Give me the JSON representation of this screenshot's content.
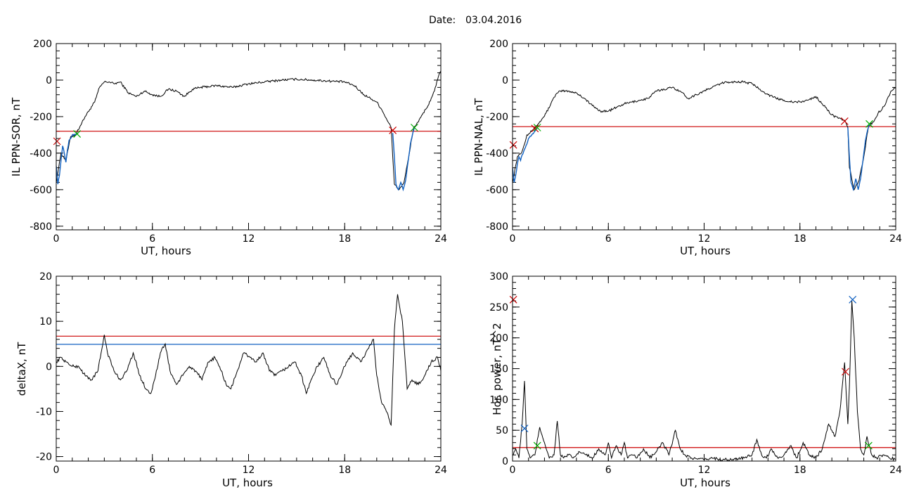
{
  "header": {
    "date_label": "Date:",
    "date_value": "03.04.2016"
  },
  "colors": {
    "trace": "#000000",
    "threshold": "#cc0000",
    "secondary": "#1060c0",
    "marker_start": "#cc0000",
    "marker_end": "#00aa00",
    "marker_peak": "#1060c0"
  },
  "chart_data": [
    {
      "type": "line",
      "xlabel": "UT, hours",
      "ylabel": "IL PPN-SOR, nT",
      "xlim": [
        0,
        24
      ],
      "ylim": [
        -820,
        200
      ],
      "xticks": [
        0,
        6,
        12,
        18,
        24
      ],
      "yticks": [
        -800,
        -600,
        -400,
        -200,
        0,
        200
      ],
      "series": [
        {
          "color": "#000000",
          "x": [
            0,
            0.3,
            0.6,
            0.9,
            1.2,
            1.5,
            1.8,
            2.1,
            2.4,
            2.7,
            3.0,
            3.3,
            3.6,
            4.0,
            4.5,
            5.0,
            5.5,
            6.0,
            6.5,
            7.0,
            7.5,
            8.0,
            8.5,
            9.0,
            10.0,
            11.0,
            12.0,
            13.0,
            14.0,
            15.0,
            16.0,
            17.0,
            18.0,
            18.6,
            19.2,
            19.6,
            20.0,
            20.3,
            20.6,
            20.9,
            21.0,
            21.1,
            21.4,
            21.7,
            22.0,
            22.3,
            22.6,
            22.9,
            23.2,
            23.5,
            23.7,
            23.85,
            24.0
          ],
          "y": [
            -560,
            -400,
            -440,
            -310,
            -300,
            -250,
            -200,
            -160,
            -120,
            -40,
            -10,
            -10,
            -20,
            -10,
            -70,
            -90,
            -60,
            -80,
            -90,
            -50,
            -60,
            -90,
            -50,
            -40,
            -30,
            -40,
            -20,
            -10,
            0,
            5,
            0,
            -5,
            -10,
            -30,
            -80,
            -100,
            -120,
            -160,
            -210,
            -260,
            -420,
            -570,
            -600,
            -560,
            -420,
            -260,
            -230,
            -180,
            -140,
            -80,
            -30,
            20,
            50
          ]
        },
        {
          "color": "#1060c0",
          "x": [
            0,
            0.1,
            0.2,
            0.3,
            0.4,
            0.5,
            0.6,
            0.7,
            0.8,
            0.9,
            1.0,
            1.2,
            1.35
          ],
          "y": [
            -470,
            -570,
            -520,
            -440,
            -360,
            -400,
            -450,
            -380,
            -330,
            -320,
            -300,
            -300,
            -290
          ]
        },
        {
          "color": "#1060c0",
          "x": [
            21.0,
            21.1,
            21.2,
            21.35,
            21.5,
            21.65,
            21.8,
            21.95,
            22.1,
            22.25,
            22.35
          ],
          "y": [
            -290,
            -420,
            -570,
            -600,
            -560,
            -600,
            -550,
            -450,
            -350,
            -290,
            -260
          ]
        }
      ],
      "threshold": {
        "y": -280,
        "color": "#cc0000"
      },
      "markers": [
        {
          "x": 0.05,
          "y": -335,
          "color": "#cc0000"
        },
        {
          "x": 1.3,
          "y": -295,
          "color": "#00aa00"
        },
        {
          "x": 21.0,
          "y": -275,
          "color": "#cc0000"
        },
        {
          "x": 22.35,
          "y": -260,
          "color": "#00aa00"
        }
      ],
      "noise": 6
    },
    {
      "type": "line",
      "xlabel": "UT, hours",
      "ylabel": "IL PPN-NAL, nT",
      "xlim": [
        0,
        24
      ],
      "ylim": [
        -820,
        200
      ],
      "xticks": [
        0,
        6,
        12,
        18,
        24
      ],
      "yticks": [
        -800,
        -600,
        -400,
        -200,
        0,
        200
      ],
      "series": [
        {
          "color": "#000000",
          "x": [
            0,
            0.3,
            0.6,
            0.9,
            1.2,
            1.5,
            1.8,
            2.1,
            2.4,
            2.7,
            3.0,
            3.5,
            4.0,
            4.5,
            5.0,
            5.5,
            6.0,
            6.5,
            7.0,
            7.5,
            8.0,
            8.5,
            9.0,
            9.5,
            10.0,
            10.5,
            11.0,
            11.5,
            12.0,
            12.5,
            13.0,
            13.5,
            14.0,
            14.5,
            15.0,
            15.5,
            16.0,
            16.5,
            17.0,
            17.5,
            18.0,
            18.5,
            19.0,
            19.6,
            20.0,
            20.4,
            20.8,
            21.0,
            21.1,
            21.4,
            21.7,
            22.0,
            22.3,
            22.6,
            22.9,
            23.3,
            23.7,
            24.0
          ],
          "y": [
            -560,
            -420,
            -390,
            -300,
            -280,
            -250,
            -220,
            -180,
            -130,
            -80,
            -60,
            -60,
            -70,
            -100,
            -140,
            -170,
            -170,
            -150,
            -130,
            -120,
            -110,
            -100,
            -60,
            -50,
            -40,
            -60,
            -100,
            -80,
            -60,
            -40,
            -20,
            -10,
            -10,
            -10,
            -20,
            -50,
            -80,
            -100,
            -110,
            -120,
            -120,
            -110,
            -90,
            -150,
            -190,
            -210,
            -220,
            -260,
            -480,
            -600,
            -550,
            -420,
            -250,
            -230,
            -180,
            -140,
            -60,
            -40
          ]
        },
        {
          "color": "#1060c0",
          "x": [
            0,
            0.1,
            0.2,
            0.3,
            0.4,
            0.5,
            0.6,
            0.7,
            0.8,
            0.9,
            1.0,
            1.2,
            1.4,
            1.55
          ],
          "y": [
            -480,
            -560,
            -520,
            -460,
            -420,
            -440,
            -410,
            -390,
            -370,
            -350,
            -320,
            -300,
            -280,
            -265
          ]
        },
        {
          "color": "#1060c0",
          "x": [
            21.0,
            21.1,
            21.2,
            21.35,
            21.5,
            21.65,
            21.8,
            21.95,
            22.1,
            22.25,
            22.35
          ],
          "y": [
            -260,
            -420,
            -560,
            -600,
            -540,
            -600,
            -540,
            -440,
            -330,
            -270,
            -245
          ]
        }
      ],
      "threshold": {
        "y": -255,
        "color": "#cc0000"
      },
      "markers": [
        {
          "x": 0.05,
          "y": -355,
          "color": "#cc0000"
        },
        {
          "x": 1.4,
          "y": -265,
          "color": "#cc0000"
        },
        {
          "x": 1.55,
          "y": -260,
          "color": "#00aa00"
        },
        {
          "x": 20.8,
          "y": -225,
          "color": "#cc0000"
        },
        {
          "x": 22.35,
          "y": -240,
          "color": "#00aa00"
        }
      ],
      "noise": 6
    },
    {
      "type": "line",
      "xlabel": "UT, hours",
      "ylabel": "deltaX, nT",
      "xlim": [
        0,
        24
      ],
      "ylim": [
        -21,
        20
      ],
      "xticks": [
        0,
        6,
        12,
        18,
        24
      ],
      "yticks": [
        -20,
        -10,
        0,
        10,
        20
      ],
      "series": [
        {
          "color": "#000000",
          "x": [
            0,
            0.3,
            0.6,
            1.0,
            1.4,
            1.8,
            2.2,
            2.6,
            2.8,
            3.0,
            3.2,
            3.6,
            4.0,
            4.4,
            4.8,
            5.2,
            5.6,
            5.9,
            6.2,
            6.5,
            6.8,
            7.1,
            7.5,
            7.9,
            8.3,
            8.7,
            9.1,
            9.5,
            9.9,
            10.3,
            10.6,
            10.9,
            11.3,
            11.7,
            12.1,
            12.5,
            12.9,
            13.3,
            13.7,
            14.1,
            14.5,
            14.9,
            15.3,
            15.6,
            15.9,
            16.3,
            16.7,
            17.1,
            17.5,
            18.0,
            18.5,
            19.0,
            19.5,
            19.8,
            20.0,
            20.3,
            20.6,
            20.9,
            21.1,
            21.3,
            21.6,
            21.9,
            22.2,
            22.6,
            23.0,
            23.4,
            23.8,
            24.0
          ],
          "y": [
            1,
            2,
            1,
            0,
            0,
            -2,
            -3,
            -1,
            3,
            7,
            3,
            -1,
            -3,
            -1,
            3,
            -2,
            -5,
            -6,
            -2,
            3,
            5,
            -1,
            -4,
            -2,
            0,
            -1,
            -3,
            1,
            2,
            -1,
            -4,
            -5,
            -1,
            3,
            2,
            1,
            3,
            -1,
            -2,
            -1,
            0,
            1,
            -2,
            -6,
            -3,
            0,
            2,
            -2,
            -4,
            0,
            3,
            1,
            4,
            6,
            -2,
            -8,
            -10,
            -13,
            8,
            16,
            10,
            -5,
            -3,
            -4,
            -2,
            1,
            2,
            -1
          ]
        }
      ],
      "hlines": [
        {
          "y": 6.7,
          "color": "#cc0000"
        },
        {
          "y": 4.9,
          "color": "#1060c0"
        }
      ],
      "markers": [],
      "noise": 0.35
    },
    {
      "type": "line",
      "xlabel": "UT, hours",
      "ylabel": "Hor. power, nT^2",
      "xlim": [
        0,
        24
      ],
      "ylim": [
        0,
        300
      ],
      "xticks": [
        0,
        6,
        12,
        18,
        24
      ],
      "yticks": [
        0,
        50,
        100,
        150,
        200,
        250,
        300
      ],
      "series": [
        {
          "color": "#000000",
          "x": [
            0,
            0.2,
            0.4,
            0.6,
            0.75,
            0.9,
            1.1,
            1.4,
            1.7,
            2.0,
            2.3,
            2.6,
            2.8,
            3.0,
            3.2,
            3.5,
            3.8,
            4.2,
            4.6,
            5.0,
            5.4,
            5.8,
            6.0,
            6.2,
            6.5,
            6.8,
            7.0,
            7.2,
            7.5,
            7.8,
            8.2,
            8.6,
            9.0,
            9.4,
            9.8,
            10.2,
            10.5,
            10.8,
            11.2,
            11.6,
            12.0,
            12.5,
            13.0,
            13.5,
            14.0,
            14.5,
            15.0,
            15.3,
            15.6,
            15.9,
            16.2,
            16.6,
            17.0,
            17.4,
            17.8,
            18.2,
            18.6,
            19.0,
            19.4,
            19.8,
            20.2,
            20.5,
            20.8,
            21.0,
            21.1,
            21.25,
            21.4,
            21.6,
            21.8,
            22.0,
            22.2,
            22.5,
            22.8,
            23.2,
            23.6,
            24.0
          ],
          "y": [
            10,
            20,
            5,
            60,
            130,
            20,
            5,
            10,
            55,
            30,
            5,
            10,
            65,
            10,
            5,
            10,
            5,
            15,
            10,
            5,
            20,
            10,
            30,
            5,
            25,
            10,
            30,
            5,
            10,
            5,
            20,
            5,
            15,
            30,
            10,
            50,
            20,
            10,
            5,
            3,
            2,
            5,
            3,
            2,
            3,
            5,
            10,
            35,
            10,
            5,
            20,
            5,
            10,
            25,
            5,
            30,
            10,
            5,
            20,
            60,
            40,
            80,
            160,
            60,
            120,
            260,
            200,
            80,
            20,
            10,
            40,
            10,
            5,
            10,
            5,
            3
          ]
        }
      ],
      "threshold": {
        "y": 22,
        "color": "#cc0000"
      },
      "markers": [
        {
          "x": 0.05,
          "y": 262,
          "color": "#cc0000"
        },
        {
          "x": 0.75,
          "y": 53,
          "color": "#1060c0"
        },
        {
          "x": 1.55,
          "y": 25,
          "color": "#00aa00"
        },
        {
          "x": 20.85,
          "y": 145,
          "color": "#cc0000"
        },
        {
          "x": 21.3,
          "y": 262,
          "color": "#1060c0"
        },
        {
          "x": 22.3,
          "y": 25,
          "color": "#00aa00"
        }
      ],
      "noise": 2.5
    }
  ]
}
